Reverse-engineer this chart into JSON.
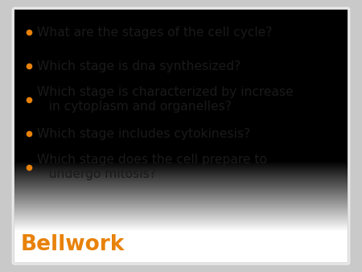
{
  "title": "Bellwork",
  "title_color": "#E8820A",
  "title_fontsize": 19,
  "title_fontstyle": "bold",
  "bullet_color": "#E8820A",
  "bullet_text_color": "#1a1a1a",
  "bullet_fontsize": 11.2,
  "bullets": [
    "What are the stages of the cell cycle?",
    "Which stage is dna synthesized?",
    "Which stage is characterized by increase\n   in cytoplasm and organelles?",
    "Which stage includes cytokinesis?",
    "Which stage does the cell prepare to\n   undergo mitosis?"
  ],
  "background_outer": "#c9c9c9",
  "card_color_top": "#d6d6d6",
  "card_color_bottom": "#b2b2b2",
  "card_border_color": "#e0e0e0",
  "figsize": [
    4.5,
    3.38
  ],
  "dpi": 100
}
